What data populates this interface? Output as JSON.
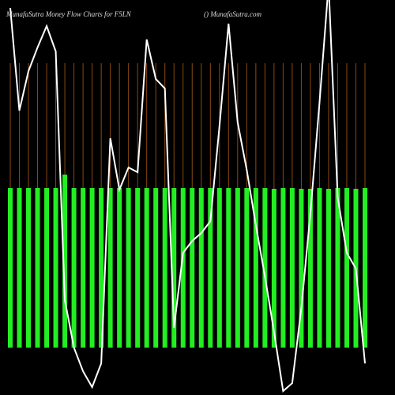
{
  "chart_data": {
    "type": "bar",
    "title": "MunafaSutra  Money Flow  Charts for F5LN",
    "subtitle": "() MunafaSutra.com",
    "bar_color": "#22ee22",
    "line_color": "#ffffff",
    "grid_color": "#8a4a10",
    "grid": true,
    "ylim": [
      0,
      440
    ],
    "values": [
      202,
      202,
      202,
      202,
      202,
      202,
      219,
      202,
      202,
      202,
      202,
      202,
      202,
      202,
      202,
      202,
      202,
      202,
      202,
      202,
      202,
      202,
      202,
      202,
      202,
      202,
      202,
      202,
      202,
      201,
      202,
      202,
      201,
      201,
      202,
      201,
      202,
      202,
      201,
      202
    ],
    "line": [
      430,
      300,
      350,
      380,
      407,
      375,
      60,
      0,
      -30,
      -50,
      -20,
      265,
      200,
      228,
      222,
      390,
      340,
      328,
      25,
      120,
      135,
      145,
      160,
      280,
      410,
      285,
      225,
      155,
      90,
      20,
      -55,
      -45,
      50,
      170,
      310,
      460,
      190,
      120,
      100,
      -20
    ]
  }
}
